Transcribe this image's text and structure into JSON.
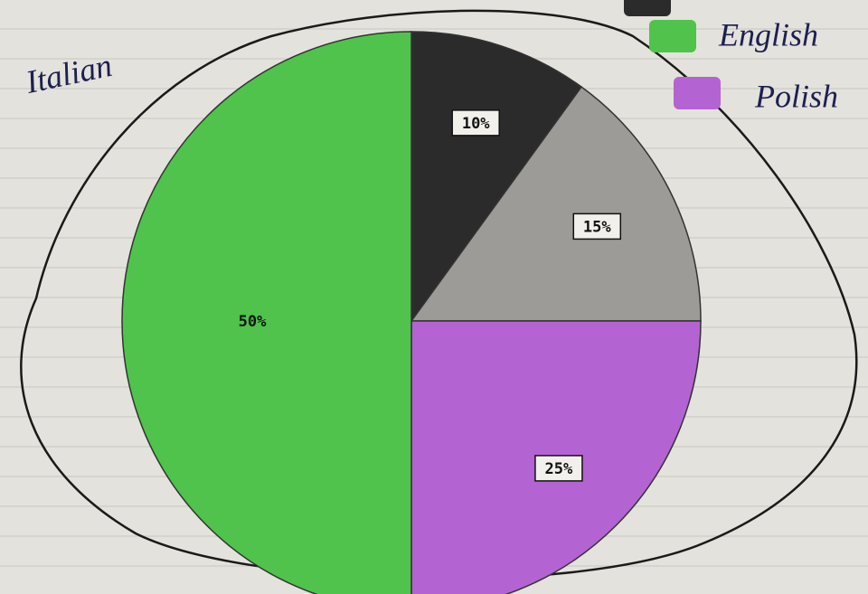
{
  "chart_data": {
    "type": "pie",
    "categories": [
      null,
      "Italian",
      "Polish",
      "English"
    ],
    "values": [
      10,
      15,
      25,
      50
    ],
    "value_labels": [
      "10%",
      "15%",
      "25%",
      "50%"
    ],
    "colors": [
      "#2b2b2b",
      "#9c9b98",
      "#b463d2",
      "#4fc34c"
    ]
  }
}
